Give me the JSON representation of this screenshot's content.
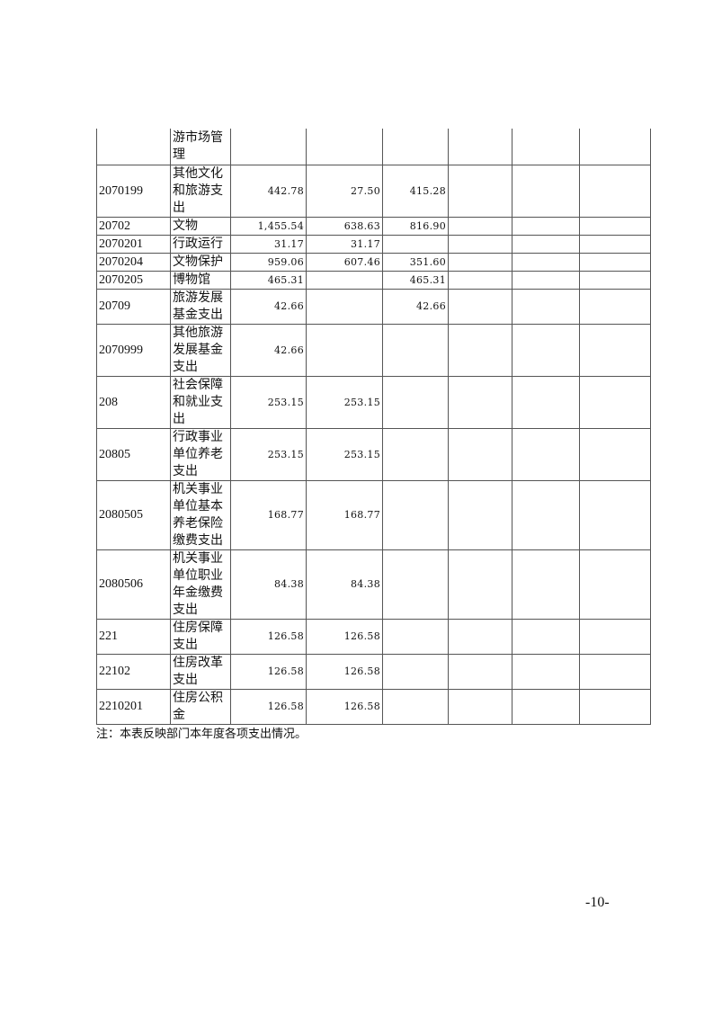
{
  "table": {
    "rows": [
      {
        "code": "",
        "name": "游市场管理",
        "total": "",
        "basic": "",
        "project": "",
        "h": 40
      },
      {
        "code": "2070199",
        "name": "其他文化和旅游支出",
        "total": "442.78",
        "basic": "27.50",
        "project": "415.28",
        "h": 58
      },
      {
        "code": "20702",
        "name": "文物",
        "total": "1,455.54",
        "basic": "638.63",
        "project": "816.90",
        "h": 20
      },
      {
        "code": "2070201",
        "name": "行政运行",
        "total": "31.17",
        "basic": "31.17",
        "project": "",
        "h": 20
      },
      {
        "code": "2070204",
        "name": "文物保护",
        "total": "959.06",
        "basic": "607.46",
        "project": "351.60",
        "h": 20
      },
      {
        "code": "2070205",
        "name": "博物馆",
        "total": "465.31",
        "basic": "",
        "project": "465.31",
        "h": 19
      },
      {
        "code": "20709",
        "name": "旅游发展基金支出",
        "total": "42.66",
        "basic": "",
        "project": "42.66",
        "h": 39
      },
      {
        "code": "2070999",
        "name": "其他旅游发展基金支出",
        "total": "42.66",
        "basic": "",
        "project": "",
        "h": 58
      },
      {
        "code": "208",
        "name": "社会保障和就业支出",
        "total": "253.15",
        "basic": "253.15",
        "project": "",
        "h": 58
      },
      {
        "code": "20805",
        "name": "行政事业单位养老支出",
        "total": "253.15",
        "basic": "253.15",
        "project": "",
        "h": 58
      },
      {
        "code": "2080505",
        "name": "机关事业单位基本养老保险缴费支出",
        "total": "168.77",
        "basic": "168.77",
        "project": "",
        "h": 76
      },
      {
        "code": "2080506",
        "name": "机关事业单位职业年金缴费支出",
        "total": "84.38",
        "basic": "84.38",
        "project": "",
        "h": 77
      },
      {
        "code": "221",
        "name": "住房保障支出",
        "total": "126.58",
        "basic": "126.58",
        "project": "",
        "h": 39
      },
      {
        "code": "22102",
        "name": "住房改革支出",
        "total": "126.58",
        "basic": "126.58",
        "project": "",
        "h": 39
      },
      {
        "code": "2210201",
        "name": "住房公积金",
        "total": "126.58",
        "basic": "126.58",
        "project": "",
        "h": 38
      }
    ]
  },
  "note": "注：本表反映部门本年度各项支出情况。",
  "page_number": "-10-"
}
